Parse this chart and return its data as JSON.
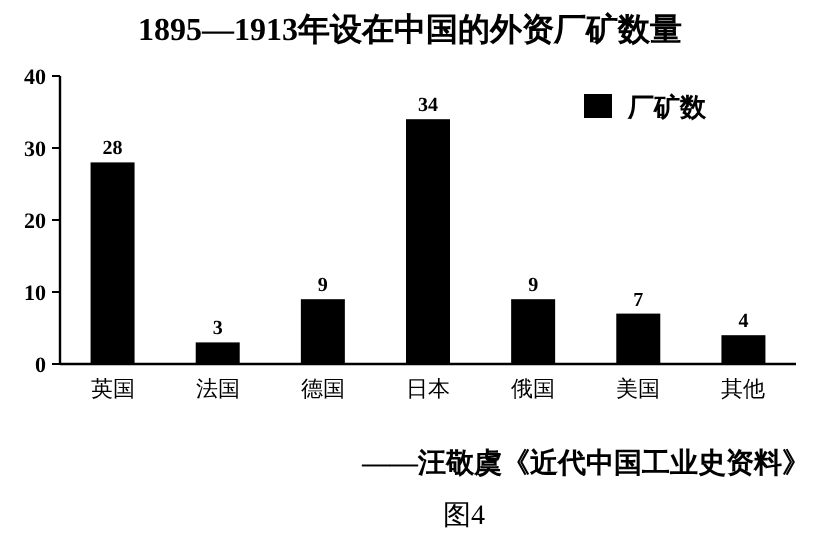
{
  "chart_data": {
    "type": "bar",
    "title": "1895—1913年设在中国的外资厂矿数量",
    "categories": [
      "英国",
      "法国",
      "德国",
      "日本",
      "俄国",
      "美国",
      "其他"
    ],
    "series": [
      {
        "name": "厂矿数",
        "color": "#000000",
        "values": [
          28,
          3,
          9,
          34,
          9,
          7,
          4
        ]
      }
    ],
    "ylim": [
      0,
      40
    ],
    "yticks": [
      0,
      10,
      20,
      30,
      40
    ],
    "data_labels": true,
    "legend": "top right",
    "annotations": [
      "——汪敬虞《近代中国工业史资料》",
      "图4"
    ]
  }
}
